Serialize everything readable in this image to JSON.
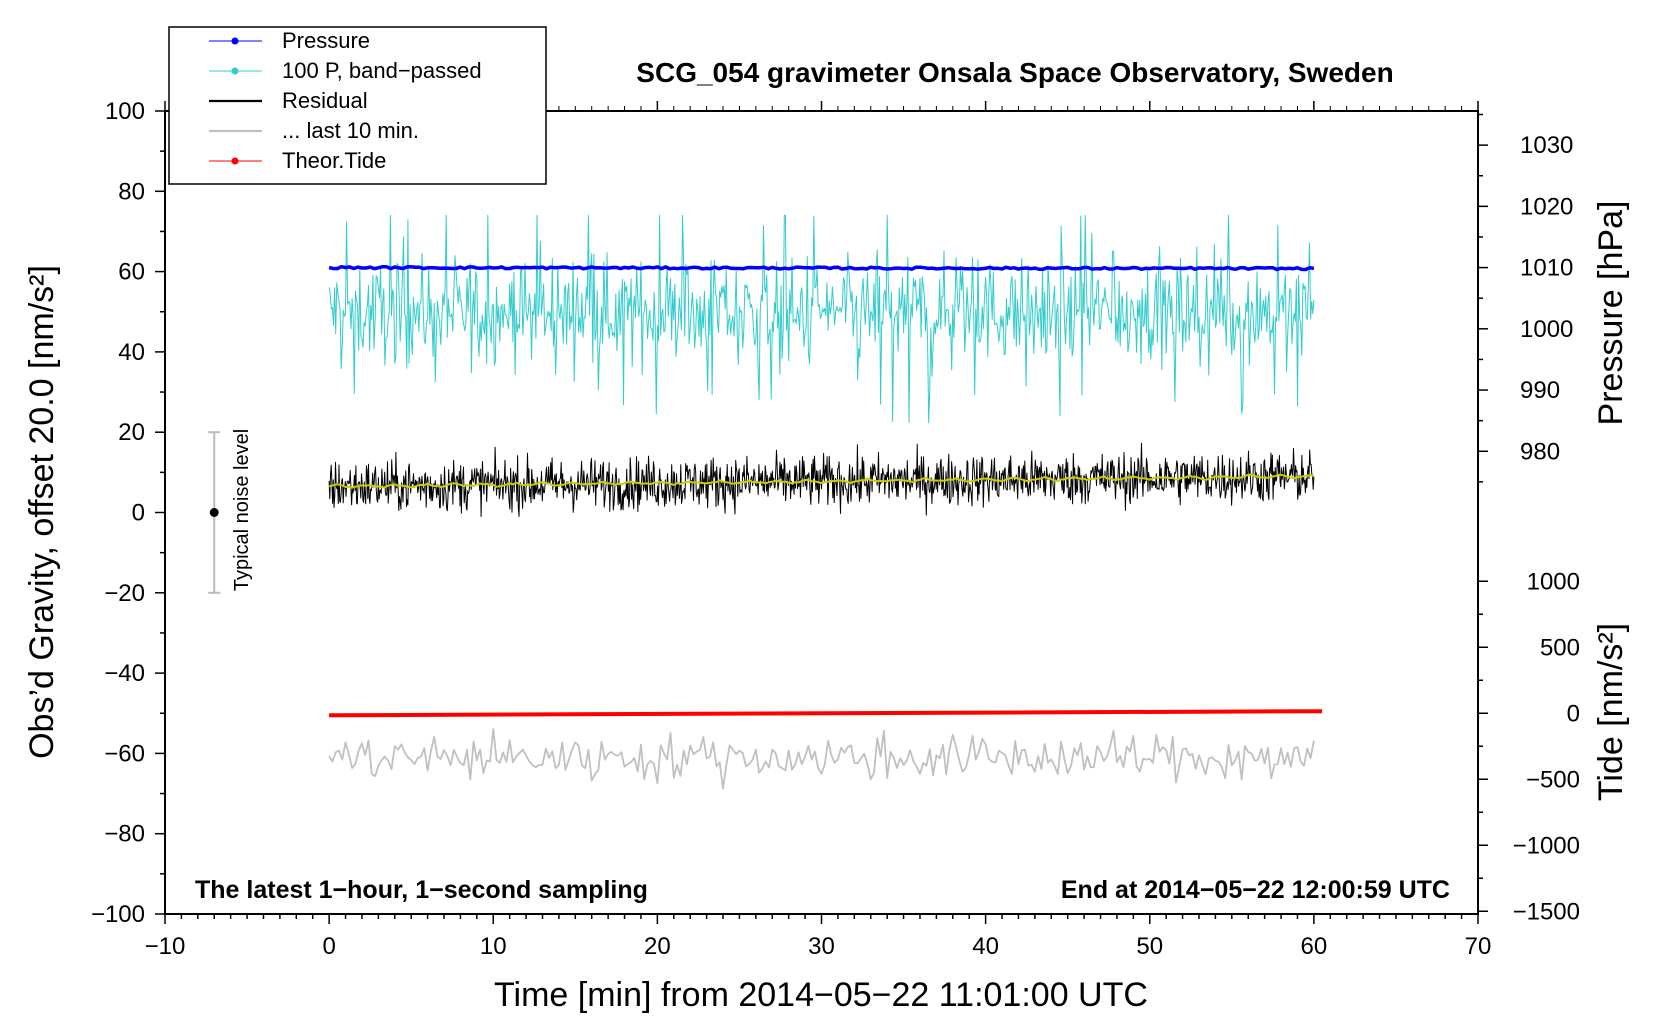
{
  "chart_data": {
    "type": "line",
    "title": "SCG_054 gravimeter Onsala Space Observatory, Sweden",
    "xlabel": "Time [min] from 2014−05−22 11:01:00 UTC",
    "ylabel_left": "Obs’d Gravity, offset 20.0 [nm/s²]",
    "ylabel_right_top": "Pressure [hPa]",
    "ylabel_right_bottom": "Tide [nm/s²]",
    "xlim": [
      -10,
      70
    ],
    "ylim": [
      -100,
      100
    ],
    "x_ticks": [
      -10,
      0,
      10,
      20,
      30,
      40,
      50,
      60,
      70
    ],
    "x_tick_labels": [
      "−10",
      "0",
      "10",
      "20",
      "30",
      "40",
      "50",
      "60",
      "70"
    ],
    "y_ticks": [
      100,
      80,
      60,
      40,
      20,
      0,
      -20,
      -40,
      -60,
      -80,
      -100
    ],
    "y_tick_labels": [
      "100",
      "80",
      "60",
      "40",
      "20",
      "0",
      "−20",
      "−40",
      "−60",
      "−80",
      "−100"
    ],
    "pressure_axis": {
      "range": [
        970,
        1035
      ],
      "ticks": [
        1030,
        1020,
        1010,
        1000,
        990,
        980
      ],
      "tick_labels": [
        "1030",
        "1020",
        "1010",
        "1000",
        "990",
        "980"
      ]
    },
    "tide_axis": {
      "range": [
        -1500,
        1000
      ],
      "ticks": [
        1000,
        500,
        0,
        -500,
        -1000,
        -1500
      ],
      "tick_labels": [
        "1000",
        "500",
        "0",
        "−500",
        "−1000",
        "−1500"
      ]
    },
    "legend": {
      "position": "top-left",
      "entries": [
        {
          "label": "Pressure",
          "color": "#0000ff",
          "marker": true
        },
        {
          "label": "100 P, band−passed",
          "color": "#33cccc",
          "marker": true
        },
        {
          "label": "Residual",
          "color": "#000000",
          "marker": false
        },
        {
          "label": "... last 10 min.",
          "color": "#c0c0c0",
          "marker": false
        },
        {
          "label": "Theor.Tide",
          "color": "#ff0000",
          "marker": true
        }
      ]
    },
    "series": [
      {
        "name": "Pressure",
        "color": "#0000ff",
        "x_range": [
          0,
          60
        ],
        "level_on_gravity_axis": 61,
        "pressure_hPa": 1010
      },
      {
        "name": "100 P, band−passed",
        "color": "#33cccc",
        "x_range": [
          0,
          60
        ],
        "mean": 50,
        "min": 18,
        "max": 74
      },
      {
        "name": "Residual",
        "color": "#000000",
        "x_range": [
          0,
          60
        ],
        "mean": 7,
        "min": -1,
        "max": 18
      },
      {
        "name": "Residual smoothed",
        "color": "#cccc00",
        "x_range": [
          0,
          60
        ],
        "start": 6.5,
        "end": 9
      },
      {
        "name": "... last 10 min.",
        "color": "#c0c0c0",
        "x_range": [
          0,
          60
        ],
        "mean": -61,
        "min": -71,
        "max": -51
      },
      {
        "name": "Theor.Tide",
        "color": "#ff0000",
        "x_range": [
          0,
          60.5
        ],
        "start": -50.5,
        "end": -49.5,
        "tide_start_nm_s2": -20,
        "tide_end_nm_s2": 20
      }
    ],
    "noise_bar": {
      "label": "Typical noise level",
      "x": -7,
      "center": 0,
      "half_range": 20
    },
    "annotations": {
      "bottom_left": "The latest 1−hour, 1−second sampling",
      "bottom_right": "End at 2014−05−22 12:00:59 UTC"
    }
  }
}
